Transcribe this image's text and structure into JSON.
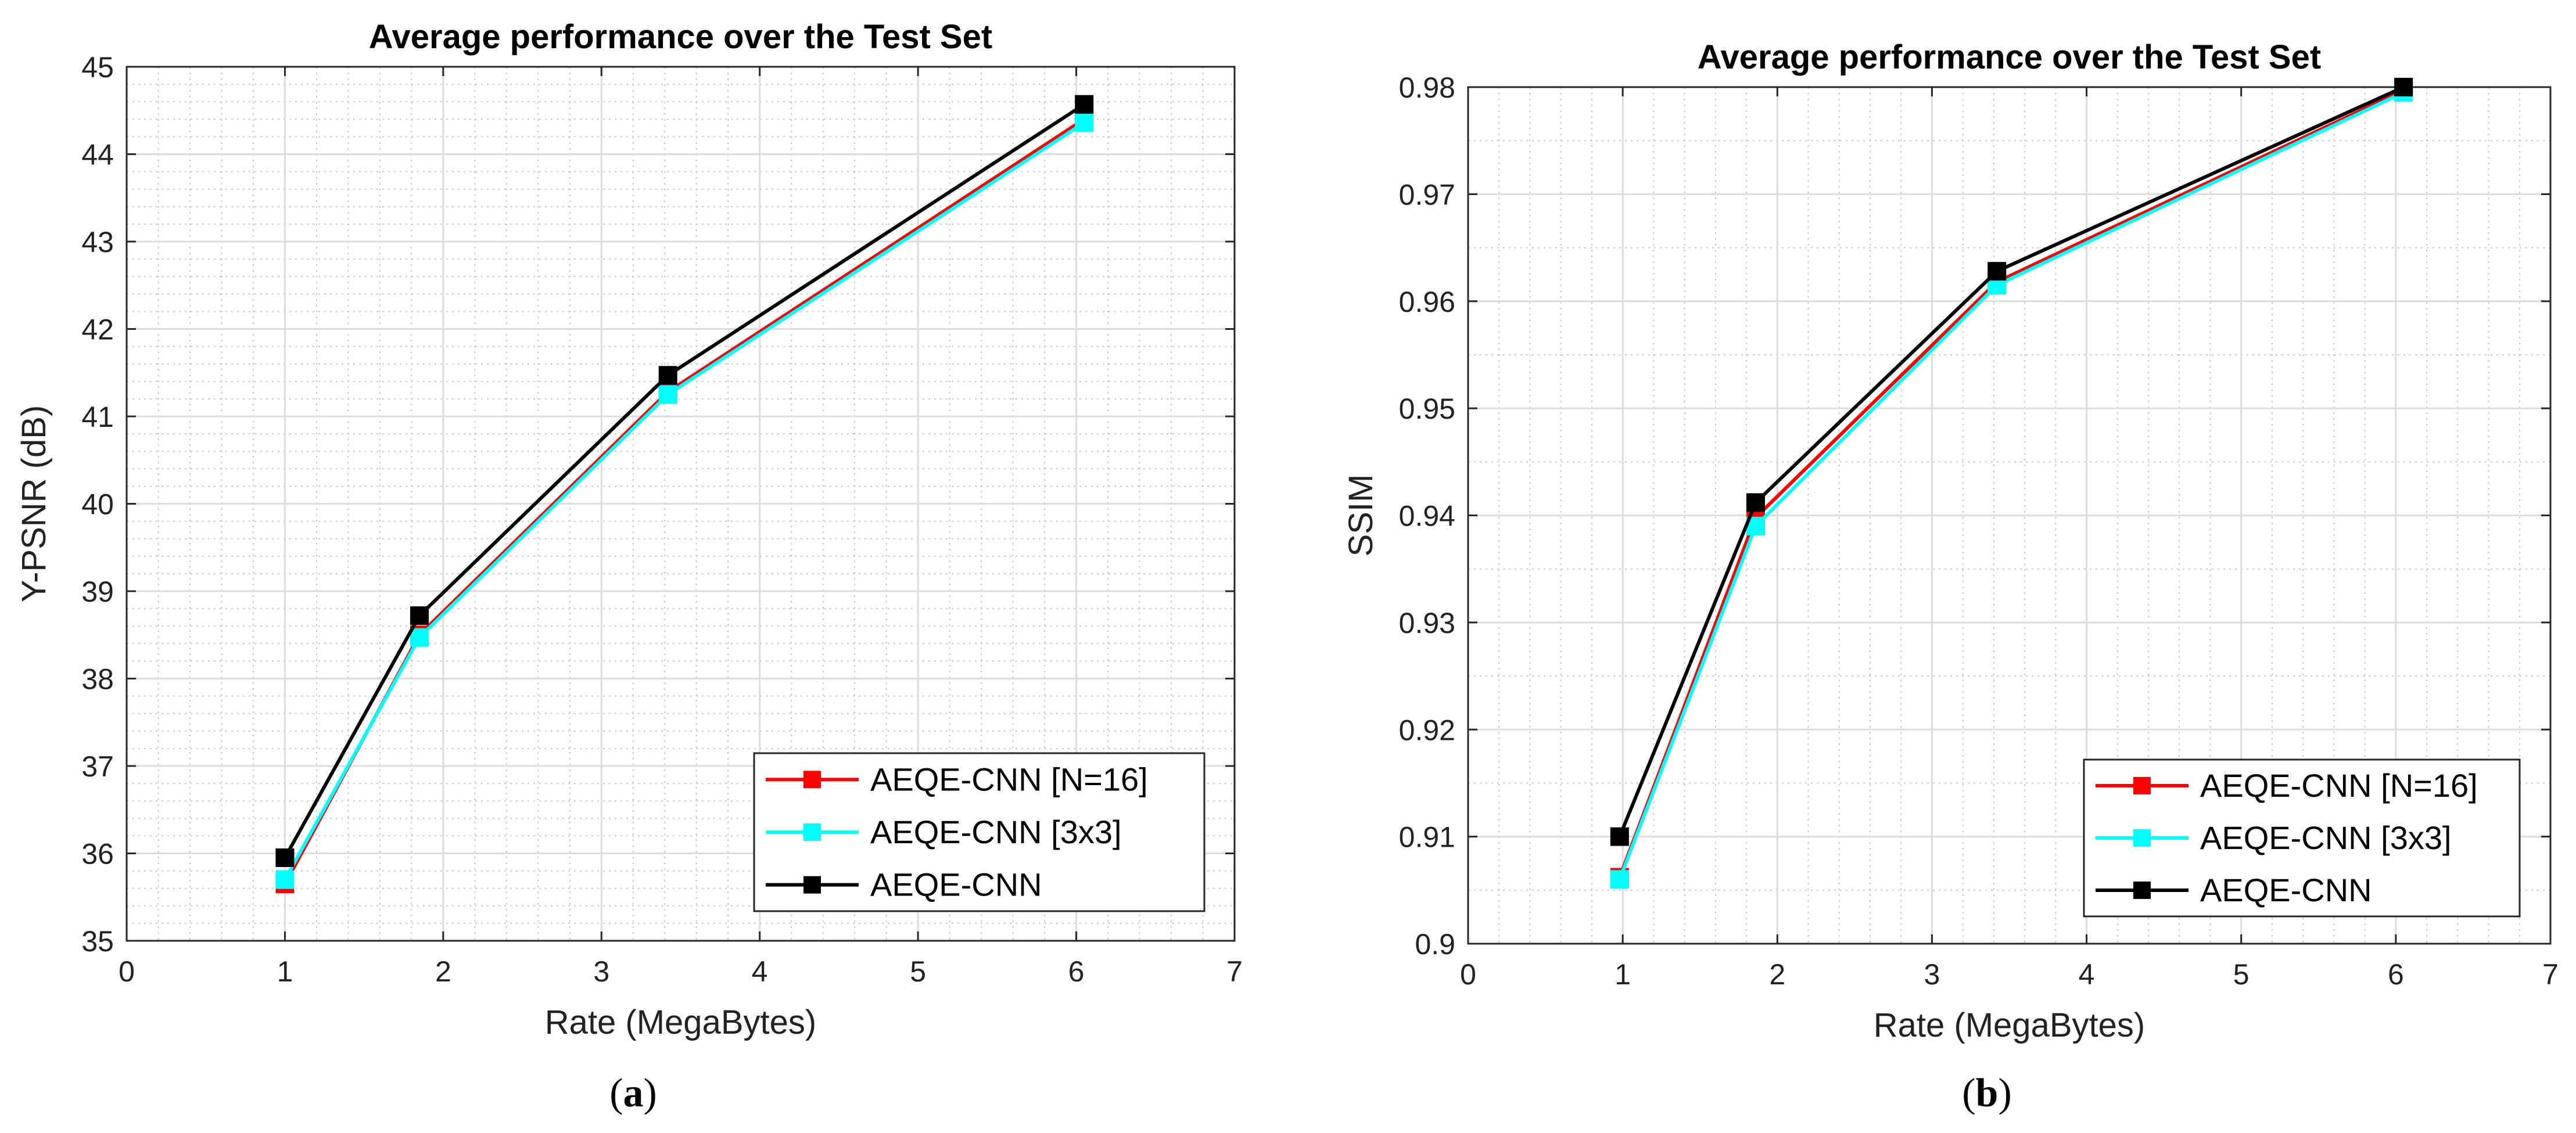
{
  "chart_data": [
    {
      "type": "line",
      "title": "Average performance over the Test Set",
      "xlabel": "Rate (MegaBytes)",
      "ylabel": "Y-PSNR (dB)",
      "xlim": [
        0,
        7
      ],
      "ylim": [
        35,
        45
      ],
      "xticks": [
        "0",
        "1",
        "2",
        "3",
        "4",
        "5",
        "6",
        "7"
      ],
      "yticks": [
        "35",
        "36",
        "37",
        "38",
        "39",
        "40",
        "41",
        "42",
        "43",
        "44",
        "45"
      ],
      "grid": true,
      "minor_grid": true,
      "legend_position": "bottom-right",
      "caption_letter": "a",
      "series": [
        {
          "name": "AEQE-CNN [N=16]",
          "color": "#ff0000",
          "x": [
            1.0,
            1.85,
            3.42,
            6.05
          ],
          "y": [
            35.65,
            38.5,
            41.28,
            44.4
          ]
        },
        {
          "name": "AEQE-CNN [3x3]",
          "color": "#00ffff",
          "x": [
            1.0,
            1.85,
            3.42,
            6.05
          ],
          "y": [
            35.7,
            38.47,
            41.25,
            44.36
          ]
        },
        {
          "name": "AEQE-CNN",
          "color": "#000000",
          "x": [
            1.0,
            1.85,
            3.42,
            6.05
          ],
          "y": [
            35.95,
            38.72,
            41.47,
            44.57
          ]
        }
      ]
    },
    {
      "type": "line",
      "title": "Average performance over the Test Set",
      "xlabel": "Rate (MegaBytes)",
      "ylabel": "SSIM",
      "xlim": [
        0,
        7
      ],
      "ylim": [
        0.9,
        0.98
      ],
      "xticks": [
        "0",
        "1",
        "2",
        "3",
        "4",
        "5",
        "6",
        "7"
      ],
      "yticks": [
        "0.9",
        "0.91",
        "0.92",
        "0.93",
        "0.94",
        "0.95",
        "0.96",
        "0.97",
        "0.98"
      ],
      "grid": true,
      "minor_grid": true,
      "legend_position": "bottom-right",
      "caption_letter": "b",
      "series": [
        {
          "name": "AEQE-CNN [N=16]",
          "color": "#ff0000",
          "x": [
            0.98,
            1.86,
            3.42,
            6.05
          ],
          "y": [
            0.9062,
            0.9398,
            0.9618,
            0.9797
          ]
        },
        {
          "name": "AEQE-CNN [3x3]",
          "color": "#00ffff",
          "x": [
            0.98,
            1.86,
            3.42,
            6.05
          ],
          "y": [
            0.906,
            0.939,
            0.9615,
            0.9795
          ]
        },
        {
          "name": "AEQE-CNN",
          "color": "#000000",
          "x": [
            0.98,
            1.86,
            3.42,
            6.05
          ],
          "y": [
            0.91,
            0.9412,
            0.9628,
            0.98
          ]
        }
      ]
    }
  ]
}
